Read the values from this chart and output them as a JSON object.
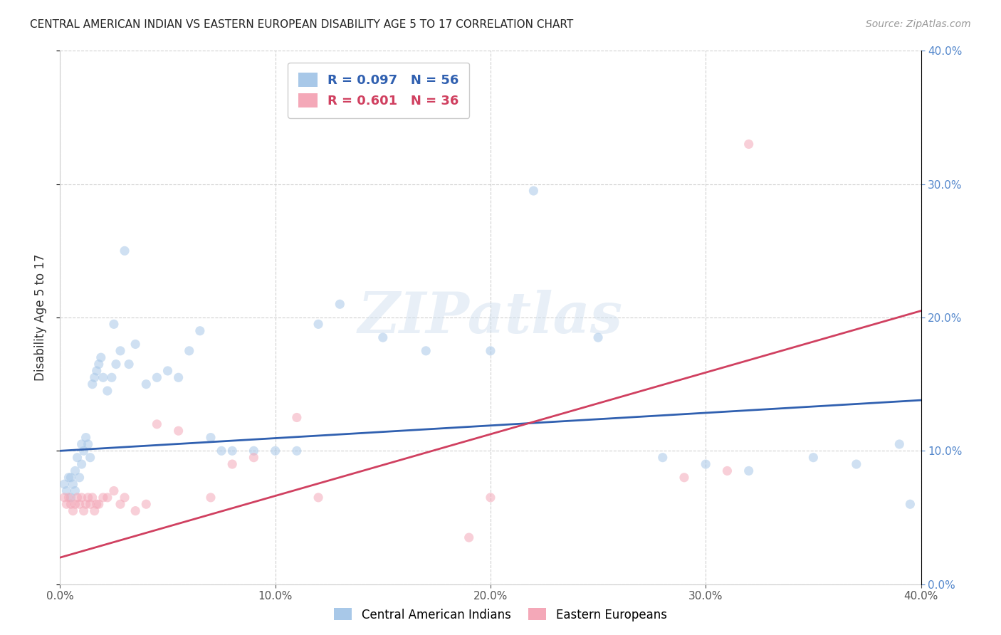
{
  "title": "CENTRAL AMERICAN INDIAN VS EASTERN EUROPEAN DISABILITY AGE 5 TO 17 CORRELATION CHART",
  "source": "Source: ZipAtlas.com",
  "ylabel": "Disability Age 5 to 17",
  "xlim": [
    0.0,
    0.4
  ],
  "ylim": [
    0.0,
    0.4
  ],
  "legend1_R": "0.097",
  "legend1_N": "56",
  "legend2_R": "0.601",
  "legend2_N": "36",
  "legend1_color": "#a8c8e8",
  "legend2_color": "#f4a8b8",
  "blue_line_color": "#3060b0",
  "pink_line_color": "#d04060",
  "watermark": "ZIPatlas",
  "blue_scatter_x": [
    0.002,
    0.003,
    0.004,
    0.005,
    0.005,
    0.006,
    0.007,
    0.007,
    0.008,
    0.009,
    0.01,
    0.01,
    0.011,
    0.012,
    0.013,
    0.014,
    0.015,
    0.016,
    0.017,
    0.018,
    0.019,
    0.02,
    0.022,
    0.024,
    0.025,
    0.026,
    0.028,
    0.03,
    0.032,
    0.035,
    0.04,
    0.045,
    0.05,
    0.055,
    0.06,
    0.065,
    0.07,
    0.075,
    0.08,
    0.09,
    0.1,
    0.11,
    0.12,
    0.13,
    0.15,
    0.17,
    0.2,
    0.22,
    0.25,
    0.28,
    0.3,
    0.32,
    0.35,
    0.37,
    0.39,
    0.395
  ],
  "blue_scatter_y": [
    0.075,
    0.07,
    0.08,
    0.065,
    0.08,
    0.075,
    0.07,
    0.085,
    0.095,
    0.08,
    0.09,
    0.105,
    0.1,
    0.11,
    0.105,
    0.095,
    0.15,
    0.155,
    0.16,
    0.165,
    0.17,
    0.155,
    0.145,
    0.155,
    0.195,
    0.165,
    0.175,
    0.25,
    0.165,
    0.18,
    0.15,
    0.155,
    0.16,
    0.155,
    0.175,
    0.19,
    0.11,
    0.1,
    0.1,
    0.1,
    0.1,
    0.1,
    0.195,
    0.21,
    0.185,
    0.175,
    0.175,
    0.295,
    0.185,
    0.095,
    0.09,
    0.085,
    0.095,
    0.09,
    0.105,
    0.06
  ],
  "pink_scatter_x": [
    0.002,
    0.003,
    0.004,
    0.005,
    0.006,
    0.007,
    0.008,
    0.009,
    0.01,
    0.011,
    0.012,
    0.013,
    0.014,
    0.015,
    0.016,
    0.017,
    0.018,
    0.02,
    0.022,
    0.025,
    0.028,
    0.03,
    0.035,
    0.04,
    0.045,
    0.055,
    0.07,
    0.08,
    0.09,
    0.11,
    0.12,
    0.19,
    0.2,
    0.29,
    0.31,
    0.32
  ],
  "pink_scatter_y": [
    0.065,
    0.06,
    0.065,
    0.06,
    0.055,
    0.06,
    0.065,
    0.06,
    0.065,
    0.055,
    0.06,
    0.065,
    0.06,
    0.065,
    0.055,
    0.06,
    0.06,
    0.065,
    0.065,
    0.07,
    0.06,
    0.065,
    0.055,
    0.06,
    0.12,
    0.115,
    0.065,
    0.09,
    0.095,
    0.125,
    0.065,
    0.035,
    0.065,
    0.08,
    0.085,
    0.33
  ],
  "blue_trend_x": [
    0.0,
    0.4
  ],
  "blue_trend_y": [
    0.1,
    0.138
  ],
  "pink_trend_x": [
    0.0,
    0.4
  ],
  "pink_trend_y": [
    0.02,
    0.205
  ],
  "grid_color": "#d0d0d0",
  "bg_color": "#ffffff",
  "scatter_alpha": 0.55,
  "scatter_size": 90,
  "right_tick_color": "#5588cc",
  "bottom_tick_color": "#555555"
}
